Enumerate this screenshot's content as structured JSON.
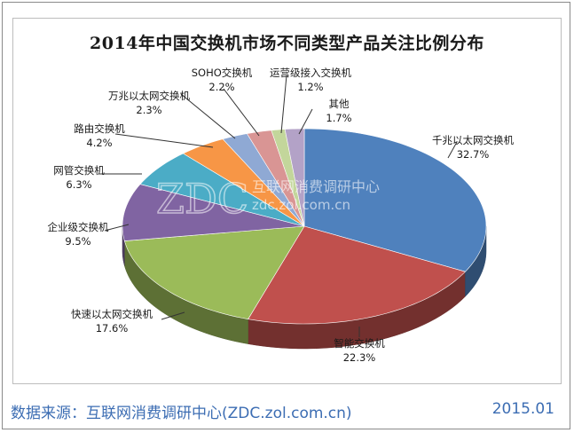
{
  "chart_data": {
    "type": "pie",
    "title": "2014年中国交换机市场不同类型产品关注比例分布",
    "categories": [
      "千兆以太网交换机",
      "智能交换机",
      "快速以太网交换机",
      "企业级交换机",
      "网管交换机",
      "路由交换机",
      "万兆以太网交换机",
      "SOHO交换机",
      "运营级接入交换机",
      "其他"
    ],
    "values": [
      32.7,
      22.3,
      17.6,
      9.5,
      6.3,
      4.2,
      2.3,
      2.2,
      1.2,
      1.7
    ],
    "value_labels": [
      "32.7%",
      "22.3%",
      "17.6%",
      "9.5%",
      "6.3%",
      "4.2%",
      "2.3%",
      "2.2%",
      "1.2%",
      "1.7%"
    ],
    "colors": [
      "#4f81bd",
      "#c0504d",
      "#9bbb59",
      "#8064a2",
      "#4bacc6",
      "#f79646",
      "#8fa9d4",
      "#d99594",
      "#c3d69b",
      "#b3a2c7"
    ],
    "legend": "none"
  },
  "watermark": {
    "logo": "ZDC",
    "name": "互联网消费调研中心",
    "url": "zdc.zol.com.cn"
  },
  "footer": {
    "source": "数据来源：互联网消费调研中心(ZDC.zol.com.cn)",
    "date": "2015.01"
  }
}
